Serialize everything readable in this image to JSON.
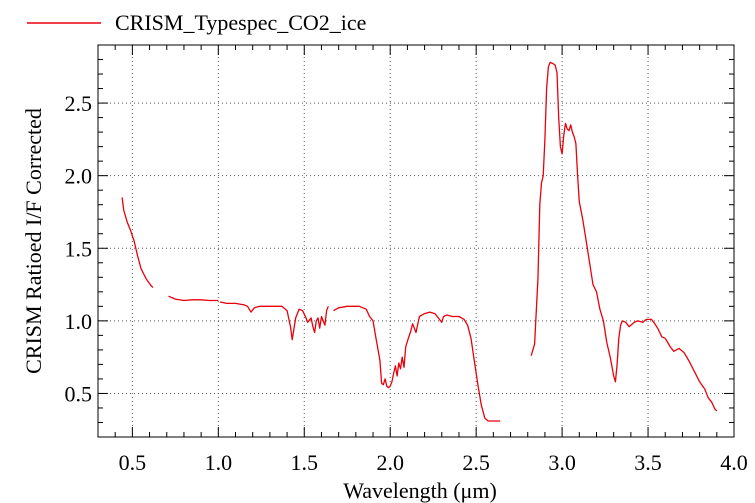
{
  "chart_data": {
    "type": "line",
    "title": "",
    "xlabel": "Wavelength (μm)",
    "ylabel": "CRISM Ratioed I/F Corrected",
    "xlim": [
      0.3,
      4.0
    ],
    "ylim": [
      0.2,
      2.9
    ],
    "xticks": [
      0.5,
      1.0,
      1.5,
      2.0,
      2.5,
      3.0,
      3.5,
      4.0
    ],
    "xtick_labels": [
      "0.5",
      "1.0",
      "1.5",
      "2.0",
      "2.5",
      "3.0",
      "3.5",
      "4.0"
    ],
    "yticks": [
      0.5,
      1.0,
      1.5,
      2.0,
      2.5
    ],
    "ytick_labels": [
      "0.5",
      "1.0",
      "1.5",
      "2.0",
      "2.5"
    ],
    "grid": true,
    "legend_position": "top-left",
    "line_color": "#e8000b",
    "series": [
      {
        "name": "CRISM_Typespec_CO2_ice",
        "segments": [
          [
            [
              0.44,
              1.85
            ],
            [
              0.45,
              1.76
            ],
            [
              0.47,
              1.68
            ],
            [
              0.49,
              1.62
            ],
            [
              0.51,
              1.55
            ],
            [
              0.53,
              1.45
            ],
            [
              0.55,
              1.36
            ],
            [
              0.58,
              1.29
            ],
            [
              0.61,
              1.24
            ],
            [
              0.62,
              1.23
            ]
          ],
          [
            [
              0.71,
              1.17
            ],
            [
              0.75,
              1.15
            ],
            [
              0.8,
              1.14
            ],
            [
              0.85,
              1.145
            ],
            [
              0.9,
              1.145
            ],
            [
              0.95,
              1.14
            ],
            [
              1.0,
              1.14
            ]
          ],
          [
            [
              1.01,
              1.13
            ],
            [
              1.05,
              1.12
            ],
            [
              1.1,
              1.12
            ],
            [
              1.15,
              1.11
            ],
            [
              1.17,
              1.1
            ],
            [
              1.19,
              1.06
            ],
            [
              1.21,
              1.09
            ],
            [
              1.24,
              1.1
            ],
            [
              1.3,
              1.1
            ],
            [
              1.37,
              1.1
            ],
            [
              1.4,
              1.07
            ],
            [
              1.42,
              0.96
            ],
            [
              1.43,
              0.87
            ],
            [
              1.45,
              1.02
            ],
            [
              1.47,
              1.08
            ],
            [
              1.49,
              1.07
            ],
            [
              1.51,
              1.02
            ],
            [
              1.52,
              0.99
            ],
            [
              1.54,
              1.02
            ],
            [
              1.55,
              0.96
            ],
            [
              1.56,
              0.92
            ],
            [
              1.57,
              1.0
            ],
            [
              1.58,
              1.02
            ],
            [
              1.59,
              0.95
            ],
            [
              1.6,
              1.03
            ],
            [
              1.62,
              0.97
            ],
            [
              1.63,
              1.07
            ],
            [
              1.64,
              1.1
            ]
          ],
          [
            [
              1.67,
              1.07
            ],
            [
              1.7,
              1.09
            ],
            [
              1.75,
              1.1
            ],
            [
              1.82,
              1.1
            ],
            [
              1.86,
              1.08
            ],
            [
              1.88,
              1.03
            ],
            [
              1.9,
              1.0
            ],
            [
              1.92,
              0.86
            ],
            [
              1.94,
              0.73
            ],
            [
              1.95,
              0.57
            ],
            [
              1.96,
              0.56
            ],
            [
              1.97,
              0.6
            ],
            [
              1.98,
              0.55
            ],
            [
              1.99,
              0.54
            ],
            [
              2.0,
              0.55
            ],
            [
              2.01,
              0.58
            ],
            [
              2.02,
              0.64
            ],
            [
              2.03,
              0.69
            ],
            [
              2.04,
              0.62
            ],
            [
              2.05,
              0.71
            ],
            [
              2.06,
              0.67
            ],
            [
              2.07,
              0.75
            ],
            [
              2.08,
              0.68
            ],
            [
              2.09,
              0.82
            ],
            [
              2.1,
              0.86
            ],
            [
              2.12,
              0.93
            ],
            [
              2.13,
              0.98
            ],
            [
              2.15,
              0.92
            ],
            [
              2.17,
              1.03
            ],
            [
              2.2,
              1.05
            ],
            [
              2.23,
              1.06
            ],
            [
              2.26,
              1.05
            ],
            [
              2.28,
              1.02
            ],
            [
              2.3,
              0.99
            ],
            [
              2.31,
              1.03
            ],
            [
              2.33,
              1.04
            ],
            [
              2.36,
              1.03
            ],
            [
              2.4,
              1.03
            ],
            [
              2.43,
              1.01
            ],
            [
              2.45,
              0.97
            ],
            [
              2.47,
              0.88
            ],
            [
              2.49,
              0.72
            ],
            [
              2.51,
              0.56
            ],
            [
              2.53,
              0.42
            ],
            [
              2.55,
              0.33
            ],
            [
              2.57,
              0.31
            ],
            [
              2.6,
              0.31
            ],
            [
              2.64,
              0.31
            ]
          ],
          [
            [
              2.82,
              0.76
            ],
            [
              2.84,
              0.84
            ],
            [
              2.86,
              1.3
            ],
            [
              2.87,
              1.8
            ],
            [
              2.88,
              1.95
            ],
            [
              2.89,
              2.0
            ],
            [
              2.9,
              2.25
            ],
            [
              2.91,
              2.6
            ],
            [
              2.92,
              2.75
            ],
            [
              2.93,
              2.78
            ],
            [
              2.95,
              2.77
            ],
            [
              2.96,
              2.76
            ],
            [
              2.97,
              2.71
            ],
            [
              2.98,
              2.4
            ],
            [
              2.99,
              2.2
            ],
            [
              3.0,
              2.15
            ],
            [
              3.01,
              2.28
            ],
            [
              3.02,
              2.36
            ],
            [
              3.03,
              2.32
            ],
            [
              3.04,
              2.31
            ],
            [
              3.05,
              2.35
            ],
            [
              3.06,
              2.3
            ],
            [
              3.07,
              2.27
            ],
            [
              3.08,
              2.22
            ],
            [
              3.09,
              2.0
            ],
            [
              3.1,
              1.82
            ],
            [
              3.12,
              1.7
            ],
            [
              3.14,
              1.55
            ],
            [
              3.16,
              1.4
            ],
            [
              3.18,
              1.25
            ],
            [
              3.2,
              1.2
            ],
            [
              3.22,
              1.08
            ],
            [
              3.24,
              1.0
            ],
            [
              3.26,
              0.85
            ],
            [
              3.28,
              0.75
            ],
            [
              3.3,
              0.62
            ],
            [
              3.31,
              0.58
            ],
            [
              3.32,
              0.7
            ],
            [
              3.33,
              0.88
            ],
            [
              3.34,
              0.97
            ],
            [
              3.35,
              1.0
            ],
            [
              3.37,
              0.99
            ],
            [
              3.39,
              0.96
            ],
            [
              3.42,
              0.99
            ],
            [
              3.44,
              1.0
            ],
            [
              3.47,
              0.99
            ],
            [
              3.49,
              1.01
            ],
            [
              3.52,
              1.01
            ],
            [
              3.54,
              0.98
            ],
            [
              3.56,
              0.94
            ],
            [
              3.58,
              0.89
            ],
            [
              3.6,
              0.88
            ],
            [
              3.63,
              0.82
            ],
            [
              3.65,
              0.79
            ],
            [
              3.68,
              0.81
            ],
            [
              3.71,
              0.78
            ],
            [
              3.74,
              0.72
            ],
            [
              3.77,
              0.65
            ],
            [
              3.8,
              0.58
            ],
            [
              3.83,
              0.53
            ],
            [
              3.85,
              0.47
            ],
            [
              3.87,
              0.44
            ],
            [
              3.89,
              0.39
            ],
            [
              3.9,
              0.38
            ]
          ]
        ]
      }
    ]
  }
}
